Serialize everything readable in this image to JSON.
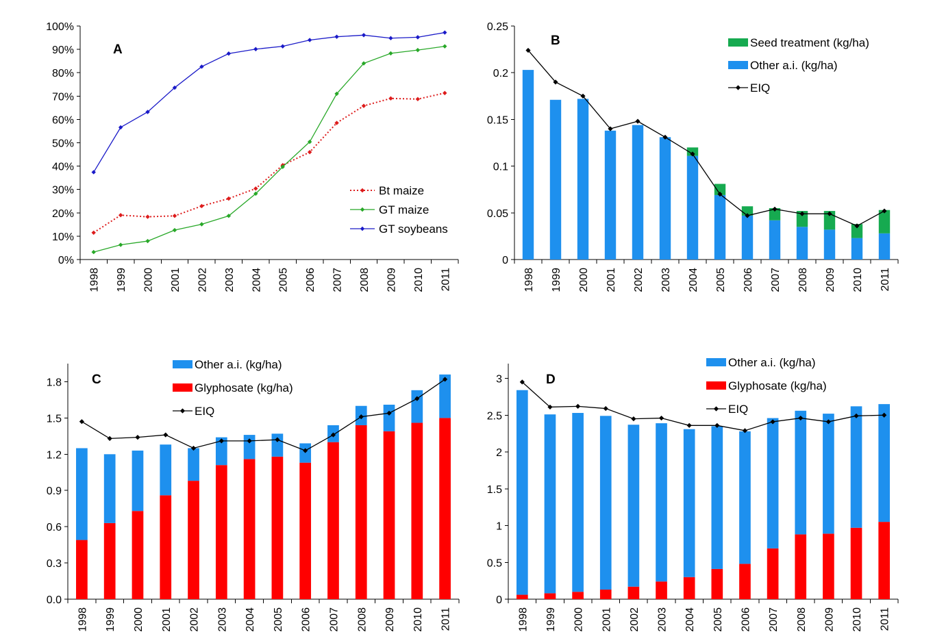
{
  "colors": {
    "blue_line": "#1a1ac8",
    "green_line": "#28a828",
    "red_line": "#dd1c1c",
    "bar_blue": "#1e90ee",
    "bar_green": "#16aa50",
    "bar_red": "#ff0000",
    "eiq": "#000000"
  },
  "chart_data": [
    {
      "panel": "A",
      "type": "line",
      "x": [
        "1998",
        "1999",
        "2000",
        "2001",
        "2002",
        "2003",
        "2004",
        "2005",
        "2006",
        "2007",
        "2008",
        "2009",
        "2010",
        "2011"
      ],
      "ylim": [
        0,
        100
      ],
      "yticks": [
        0,
        10,
        20,
        30,
        40,
        50,
        60,
        70,
        80,
        90,
        100
      ],
      "ytick_labels": [
        "0%",
        "10%",
        "20%",
        "30%",
        "40%",
        "50%",
        "60%",
        "70%",
        "80%",
        "90%",
        "100%"
      ],
      "legend_position": "bottom-right",
      "series": [
        {
          "name": "Bt maize",
          "style": "dotted",
          "color_key": "red_line",
          "values": [
            11.5,
            19,
            18.3,
            18.7,
            22.9,
            26.1,
            30.4,
            40.4,
            46,
            58.5,
            65.8,
            69,
            68.7,
            71.3
          ]
        },
        {
          "name": "GT maize",
          "style": "solid",
          "color_key": "green_line",
          "values": [
            3.2,
            6.3,
            7.9,
            12.6,
            15.1,
            18.7,
            28.2,
            39.7,
            50.4,
            71,
            84,
            88.3,
            89.7,
            91.3
          ]
        },
        {
          "name": "GT soybeans",
          "style": "solid",
          "color_key": "blue_line",
          "values": [
            37.4,
            56.6,
            63.2,
            73.6,
            82.6,
            88.2,
            90.1,
            91.3,
            94,
            95.4,
            96.1,
            94.8,
            95.2,
            97.2
          ]
        }
      ]
    },
    {
      "panel": "B",
      "type": "bar",
      "x": [
        "1998",
        "1999",
        "2000",
        "2001",
        "2002",
        "2003",
        "2004",
        "2005",
        "2006",
        "2007",
        "2008",
        "2009",
        "2010",
        "2011"
      ],
      "ylim": [
        0,
        0.25
      ],
      "yticks": [
        0,
        0.05,
        0.1,
        0.15,
        0.2,
        0.25
      ],
      "ytick_labels": [
        "0",
        "0.05",
        "0.1",
        "0.15",
        "0.2",
        "0.25"
      ],
      "legend_position": "top-right",
      "legend": [
        "Seed treatment (kg/ha)",
        "Other a.i. (kg/ha)",
        "EIQ"
      ],
      "stack": [
        {
          "name": "Other a.i. (kg/ha)",
          "color_key": "bar_blue",
          "values": [
            0.203,
            0.171,
            0.172,
            0.138,
            0.144,
            0.131,
            0.111,
            0.069,
            0.047,
            0.042,
            0.035,
            0.032,
            0.023,
            0.028
          ]
        },
        {
          "name": "Seed treatment (kg/ha)",
          "color_key": "bar_green",
          "values": [
            0,
            0,
            0,
            0,
            0,
            0,
            0.009,
            0.012,
            0.01,
            0.013,
            0.017,
            0.02,
            0.015,
            0.025
          ]
        }
      ],
      "eiq": {
        "name": "EIQ",
        "values": [
          0.224,
          0.19,
          0.175,
          0.14,
          0.148,
          0.131,
          0.113,
          0.07,
          0.047,
          0.054,
          0.049,
          0.049,
          0.036,
          0.052
        ]
      }
    },
    {
      "panel": "C",
      "type": "bar",
      "x": [
        "1998",
        "1999",
        "2000",
        "2001",
        "2002",
        "2003",
        "2004",
        "2005",
        "2006",
        "2007",
        "2008",
        "2009",
        "2010",
        "2011"
      ],
      "ylim": [
        0,
        1.95
      ],
      "yticks": [
        0,
        0.3,
        0.6,
        0.9,
        1.2,
        1.5,
        1.8
      ],
      "ytick_labels": [
        "0.0",
        "0.3",
        "0.6",
        "0.9",
        "1.2",
        "1.5",
        "1.8"
      ],
      "legend_position": "top-center",
      "legend": [
        "Other a.i. (kg/ha)",
        "Glyphosate (kg/ha)",
        "EIQ"
      ],
      "stack": [
        {
          "name": "Glyphosate (kg/ha)",
          "color_key": "bar_red",
          "values": [
            0.49,
            0.63,
            0.73,
            0.86,
            0.98,
            1.11,
            1.16,
            1.18,
            1.13,
            1.3,
            1.44,
            1.39,
            1.46,
            1.5
          ]
        },
        {
          "name": "Other a.i. (kg/ha)",
          "color_key": "bar_blue",
          "values": [
            0.76,
            0.57,
            0.5,
            0.42,
            0.27,
            0.23,
            0.2,
            0.19,
            0.16,
            0.14,
            0.16,
            0.22,
            0.27,
            0.36
          ]
        }
      ],
      "eiq": {
        "name": "EIQ",
        "values": [
          1.47,
          1.33,
          1.34,
          1.36,
          1.25,
          1.31,
          1.31,
          1.32,
          1.23,
          1.36,
          1.51,
          1.54,
          1.66,
          1.82
        ]
      }
    },
    {
      "panel": "D",
      "type": "bar",
      "x": [
        "1998",
        "1999",
        "2000",
        "2001",
        "2002",
        "2003",
        "2004",
        "2005",
        "2006",
        "2007",
        "2008",
        "2009",
        "2010",
        "2011"
      ],
      "ylim": [
        0,
        3.2
      ],
      "yticks": [
        0,
        0.5,
        1,
        1.5,
        2,
        2.5,
        3
      ],
      "ytick_labels": [
        "0",
        "0.5",
        "1",
        "1.5",
        "2",
        "2.5",
        "3"
      ],
      "legend_position": "top-center",
      "legend": [
        "Other a.i. (kg/ha)",
        "Glyphosate (kg/ha)",
        "EIQ"
      ],
      "stack": [
        {
          "name": "Glyphosate (kg/ha)",
          "color_key": "bar_red",
          "values": [
            0.06,
            0.08,
            0.1,
            0.13,
            0.17,
            0.24,
            0.3,
            0.41,
            0.48,
            0.69,
            0.88,
            0.89,
            0.97,
            1.05
          ]
        },
        {
          "name": "Other a.i. (kg/ha)",
          "color_key": "bar_blue",
          "values": [
            2.78,
            2.43,
            2.43,
            2.36,
            2.2,
            2.15,
            2.01,
            1.94,
            1.8,
            1.77,
            1.68,
            1.63,
            1.65,
            1.6
          ]
        }
      ],
      "eiq": {
        "name": "EIQ",
        "values": [
          2.95,
          2.61,
          2.62,
          2.59,
          2.45,
          2.46,
          2.36,
          2.36,
          2.29,
          2.41,
          2.46,
          2.41,
          2.49,
          2.5
        ]
      }
    }
  ]
}
